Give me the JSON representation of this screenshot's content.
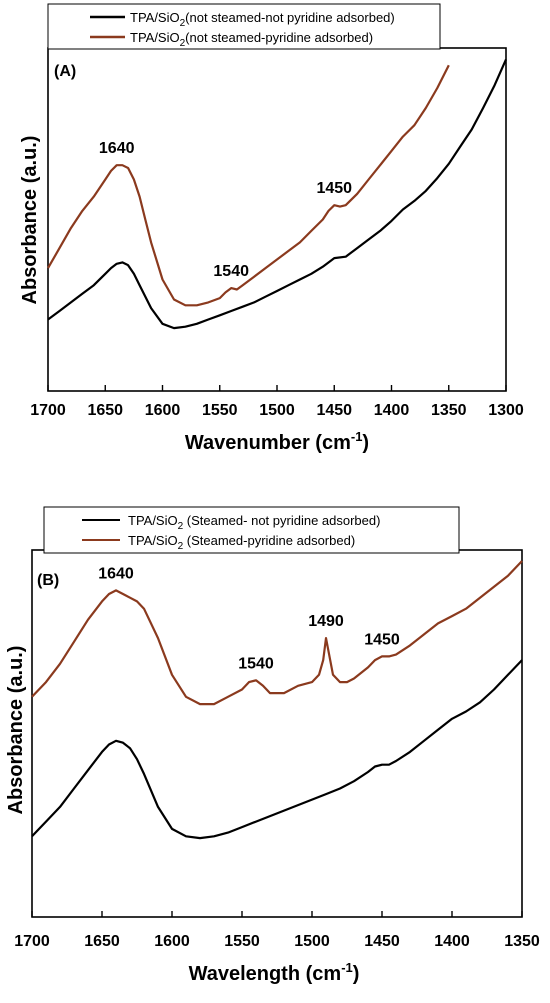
{
  "chart_data": [
    {
      "type": "line",
      "panel_label": "(A)",
      "xlabel": "Wavenumber (cm",
      "xlabel_sup": "-1",
      "xlabel_end": ")",
      "ylabel": "Absorbance (a.u.)",
      "xlim": [
        1700,
        1300
      ],
      "xticks": [
        1700,
        1650,
        1600,
        1550,
        1500,
        1450,
        1400,
        1350,
        1300
      ],
      "legend": "top",
      "series": [
        {
          "name_pre": "TPA/SiO",
          "name_sub": "2",
          "name_post": "(not steamed-not pyridine adsorbed)",
          "color": "#000000",
          "x": [
            1700,
            1690,
            1680,
            1670,
            1660,
            1650,
            1645,
            1640,
            1635,
            1630,
            1625,
            1620,
            1610,
            1600,
            1590,
            1580,
            1570,
            1560,
            1550,
            1540,
            1530,
            1520,
            1510,
            1500,
            1490,
            1480,
            1470,
            1460,
            1450,
            1440,
            1430,
            1420,
            1410,
            1400,
            1390,
            1380,
            1370,
            1360,
            1350,
            1340,
            1330,
            1320,
            1310,
            1300
          ],
          "y": [
            0.25,
            0.28,
            0.31,
            0.34,
            0.37,
            0.41,
            0.43,
            0.445,
            0.45,
            0.44,
            0.41,
            0.37,
            0.29,
            0.235,
            0.22,
            0.225,
            0.235,
            0.25,
            0.265,
            0.28,
            0.295,
            0.31,
            0.33,
            0.35,
            0.37,
            0.39,
            0.41,
            0.435,
            0.465,
            0.47,
            0.5,
            0.53,
            0.56,
            0.595,
            0.635,
            0.665,
            0.7,
            0.745,
            0.795,
            0.855,
            0.915,
            0.99,
            1.07,
            1.16
          ]
        },
        {
          "name_pre": "TPA/SiO",
          "name_sub": "2",
          "name_post": "(not steamed-pyridine adsorbed)",
          "color": "#8b3a1e",
          "x": [
            1700,
            1690,
            1680,
            1670,
            1660,
            1650,
            1645,
            1640,
            1635,
            1630,
            1625,
            1620,
            1615,
            1610,
            1600,
            1590,
            1580,
            1570,
            1560,
            1550,
            1545,
            1540,
            1535,
            1530,
            1520,
            1510,
            1500,
            1490,
            1480,
            1470,
            1460,
            1455,
            1450,
            1445,
            1440,
            1430,
            1420,
            1410,
            1400,
            1390,
            1380,
            1370,
            1360,
            1350
          ],
          "y": [
            0.43,
            0.5,
            0.57,
            0.63,
            0.68,
            0.74,
            0.77,
            0.79,
            0.79,
            0.78,
            0.74,
            0.68,
            0.6,
            0.52,
            0.39,
            0.32,
            0.3,
            0.3,
            0.31,
            0.325,
            0.345,
            0.36,
            0.355,
            0.37,
            0.4,
            0.43,
            0.46,
            0.49,
            0.52,
            0.56,
            0.6,
            0.63,
            0.65,
            0.645,
            0.65,
            0.69,
            0.74,
            0.79,
            0.84,
            0.89,
            0.93,
            0.99,
            1.06,
            1.14
          ]
        }
      ],
      "annotations": [
        {
          "text": "1640",
          "x": 1640
        },
        {
          "text": "1540",
          "x": 1540
        },
        {
          "text": "1450",
          "x": 1450
        }
      ]
    },
    {
      "type": "line",
      "panel_label": "(B)",
      "xlabel": "Wavelength (cm",
      "xlabel_sup": "-1",
      "xlabel_end": ")",
      "ylabel": "Absorbance (a.u.)",
      "xlim": [
        1700,
        1350
      ],
      "xticks": [
        1700,
        1650,
        1600,
        1550,
        1500,
        1450,
        1400,
        1350
      ],
      "legend": "top",
      "series": [
        {
          "name_pre": "TPA/SiO",
          "name_sub": "2",
          "name_post": " (Steamed- not pyridine adsorbed)",
          "color": "#000000",
          "x": [
            1700,
            1690,
            1680,
            1670,
            1660,
            1650,
            1645,
            1640,
            1635,
            1630,
            1625,
            1620,
            1610,
            1600,
            1590,
            1580,
            1570,
            1560,
            1550,
            1540,
            1530,
            1520,
            1510,
            1500,
            1490,
            1480,
            1470,
            1460,
            1455,
            1450,
            1445,
            1440,
            1430,
            1420,
            1410,
            1400,
            1390,
            1380,
            1370,
            1360,
            1350
          ],
          "y": [
            0.22,
            0.26,
            0.3,
            0.35,
            0.4,
            0.45,
            0.47,
            0.48,
            0.475,
            0.46,
            0.43,
            0.39,
            0.3,
            0.24,
            0.22,
            0.215,
            0.22,
            0.23,
            0.245,
            0.26,
            0.275,
            0.29,
            0.305,
            0.32,
            0.335,
            0.35,
            0.37,
            0.395,
            0.41,
            0.415,
            0.415,
            0.425,
            0.45,
            0.48,
            0.51,
            0.54,
            0.56,
            0.585,
            0.62,
            0.66,
            0.7
          ]
        },
        {
          "name_pre": "TPA/SiO",
          "name_sub": "2",
          "name_post": " (Steamed-pyridine adsorbed)",
          "color": "#8b3a1e",
          "x": [
            1700,
            1690,
            1680,
            1670,
            1660,
            1650,
            1645,
            1640,
            1635,
            1630,
            1625,
            1620,
            1610,
            1600,
            1590,
            1580,
            1570,
            1560,
            1550,
            1545,
            1540,
            1535,
            1530,
            1520,
            1510,
            1500,
            1495,
            1492,
            1490,
            1488,
            1485,
            1480,
            1475,
            1470,
            1460,
            1455,
            1450,
            1445,
            1440,
            1430,
            1420,
            1410,
            1400,
            1390,
            1380,
            1370,
            1360,
            1350
          ],
          "y": [
            0.6,
            0.64,
            0.69,
            0.75,
            0.81,
            0.86,
            0.88,
            0.89,
            0.88,
            0.87,
            0.86,
            0.84,
            0.76,
            0.66,
            0.6,
            0.58,
            0.58,
            0.6,
            0.62,
            0.64,
            0.645,
            0.63,
            0.61,
            0.61,
            0.63,
            0.64,
            0.66,
            0.7,
            0.76,
            0.72,
            0.66,
            0.64,
            0.64,
            0.65,
            0.68,
            0.7,
            0.71,
            0.71,
            0.715,
            0.74,
            0.77,
            0.8,
            0.82,
            0.84,
            0.87,
            0.9,
            0.93,
            0.97
          ]
        }
      ],
      "annotations": [
        {
          "text": "1640",
          "x": 1640
        },
        {
          "text": "1540",
          "x": 1540
        },
        {
          "text": "1490",
          "x": 1490
        },
        {
          "text": "1450",
          "x": 1450
        }
      ]
    }
  ]
}
